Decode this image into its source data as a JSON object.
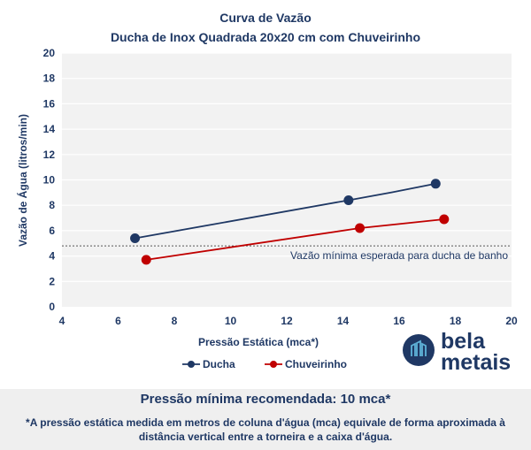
{
  "chart_data": {
    "type": "line",
    "title": "Curva de Vazão",
    "subtitle": "Ducha de Inox Quadrada 20x20 cm com Chuveirinho",
    "xlabel": "Pressão Estática (mca*)",
    "ylabel": "Vazão de Água (litros/min)",
    "xlim": [
      4,
      20
    ],
    "ylim": [
      0,
      20
    ],
    "xticks": [
      4,
      6,
      8,
      10,
      12,
      14,
      16,
      18,
      20
    ],
    "yticks": [
      0,
      2,
      4,
      6,
      8,
      10,
      12,
      14,
      16,
      18,
      20
    ],
    "grid": true,
    "legend_position": "bottom",
    "series": [
      {
        "name": "Ducha",
        "color": "#1f3864",
        "x": [
          6.6,
          14.2,
          17.3
        ],
        "y": [
          5.4,
          8.4,
          9.7
        ]
      },
      {
        "name": "Chuveirinho",
        "color": "#c00000",
        "x": [
          7.0,
          14.6,
          17.6
        ],
        "y": [
          3.7,
          6.2,
          6.9
        ]
      }
    ],
    "reference_line": {
      "y": 4.8,
      "label": "Vazão mínima esperada para ducha de banho"
    }
  },
  "brand": {
    "line1": "bela",
    "line2": "metais"
  },
  "footer": {
    "headline": "Pressão mínima recomendada: 10 mca*",
    "note": "*A pressão estática medida em metros de coluna d'água (mca) equivale de forma aproximada à distância vertical entre a torneira e a caixa d'água."
  }
}
